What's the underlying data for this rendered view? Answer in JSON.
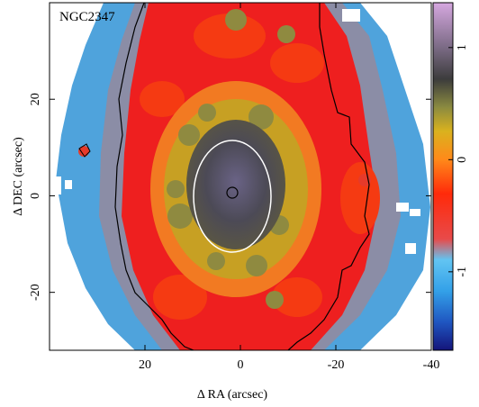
{
  "chart_data": {
    "type": "heatmap",
    "title": "NGC2347",
    "xlabel": "Δ RA (arcsec)",
    "ylabel": "Δ DEC (arcsec)",
    "xlim": [
      40,
      -40
    ],
    "ylim": [
      -32,
      40
    ],
    "x_ticks": [
      20,
      0,
      -20,
      -40
    ],
    "x_tick_labels": [
      "20",
      "0",
      "-20",
      "-40"
    ],
    "y_ticks": [
      20,
      0,
      -20
    ],
    "y_tick_labels": [
      "20",
      "0",
      "-20"
    ],
    "colorbar": {
      "range": [
        -1.7,
        1.4
      ],
      "ticks": [
        1,
        0,
        -1
      ],
      "tick_labels": [
        "1",
        "0",
        "-1"
      ],
      "colors": [
        "#1a1a8c",
        "#2266cc",
        "#33aaee",
        "#e84040",
        "#ff3010",
        "#ff8a1a",
        "#d8b020",
        "#808040",
        "#3a3a3a",
        "#7a6a80",
        "#a38aaa",
        "#c89ed0"
      ]
    },
    "maps_colors": {
      "outer_blue": "#4fa8e0",
      "outer_gray": "#8c8ea4",
      "red_ring": "#ee1c1c",
      "orange": "#f07d20",
      "yellow_olive": "#b89a26",
      "dark_core": "#4a4a52",
      "core_purple": "#6d6488"
    },
    "ellipse": {
      "center": [
        0,
        0
      ],
      "semi_major_dec": 11.5,
      "semi_minor_ra": 8,
      "color": "#ffffff"
    },
    "contour_color": "#000000"
  }
}
